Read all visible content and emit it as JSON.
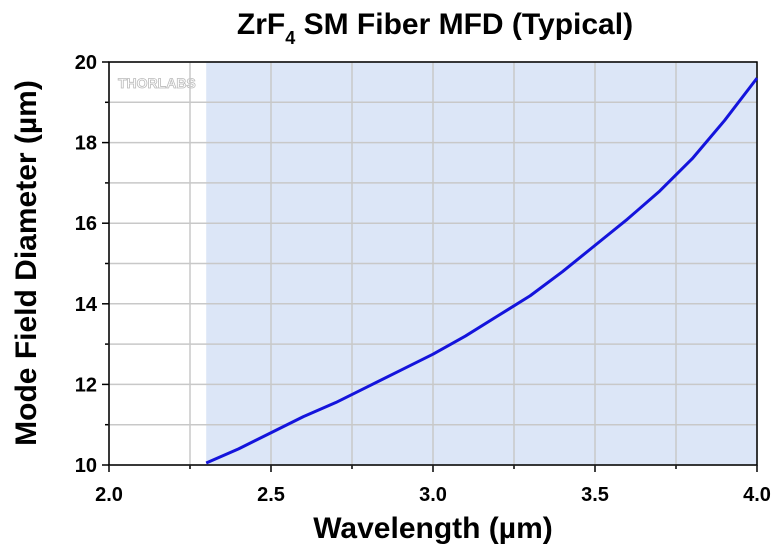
{
  "chart_data": {
    "type": "line",
    "title_parts": [
      "ZrF",
      "4",
      " SM Fiber MFD (Typical)"
    ],
    "xlabel": "Wavelength (µm)",
    "ylabel": "Mode Field Diameter (µm)",
    "watermark": "THORLABS",
    "shaded_range": [
      2.3,
      4.0
    ],
    "shade_color": "#dce6f7",
    "grid": true,
    "xlim": [
      2.0,
      4.0
    ],
    "ylim": [
      10,
      20
    ],
    "xticks": [
      {
        "value": 2,
        "label": "2.0"
      },
      {
        "value": 2.5,
        "label": "2.5"
      },
      {
        "value": 3,
        "label": "3.0"
      },
      {
        "value": 3.5,
        "label": "3.5"
      },
      {
        "value": 4,
        "label": "4.0"
      }
    ],
    "xminor": [
      2.25,
      2.75,
      3.25,
      3.75
    ],
    "yticks": [
      10,
      12,
      14,
      16,
      18,
      20
    ],
    "yminor": [
      11,
      13,
      15,
      17,
      19
    ],
    "x": [
      2.3,
      2.4,
      2.5,
      2.6,
      2.7,
      2.8,
      2.9,
      3.0,
      3.1,
      3.2,
      3.3,
      3.4,
      3.5,
      3.6,
      3.7,
      3.8,
      3.9,
      4.0
    ],
    "series": [
      {
        "color": "#1414dc",
        "values": [
          10.05,
          10.4,
          10.8,
          11.2,
          11.55,
          11.95,
          12.35,
          12.75,
          13.2,
          13.7,
          14.2,
          14.8,
          15.45,
          16.1,
          16.8,
          17.6,
          18.55,
          19.6
        ]
      }
    ]
  }
}
